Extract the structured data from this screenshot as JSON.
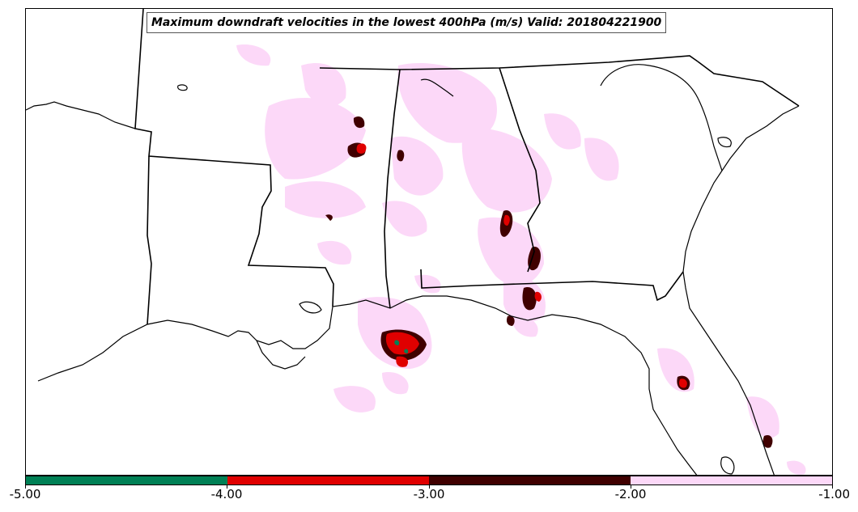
{
  "title": "Maximum downdraft velocities in the lowest 400hPa (m/s) Valid: 201804221900",
  "map": {
    "region": "Southeastern United States",
    "features": [
      "state-borders",
      "coastline",
      "downdraft-contours"
    ],
    "background_color": "#ffffff",
    "line_color": "#000000"
  },
  "colorbar": {
    "ticks": [
      "-5.00",
      "-4.00",
      "-3.00",
      "-2.00",
      "-1.00"
    ],
    "bins": [
      {
        "range": [
          -5.0,
          -4.0
        ],
        "color": "#008055"
      },
      {
        "range": [
          -4.0,
          -3.0
        ],
        "color": "#e00000"
      },
      {
        "range": [
          -3.0,
          -2.0
        ],
        "color": "#400000"
      },
      {
        "range": [
          -2.0,
          -1.0
        ],
        "color": "#fcd8f8"
      }
    ]
  }
}
